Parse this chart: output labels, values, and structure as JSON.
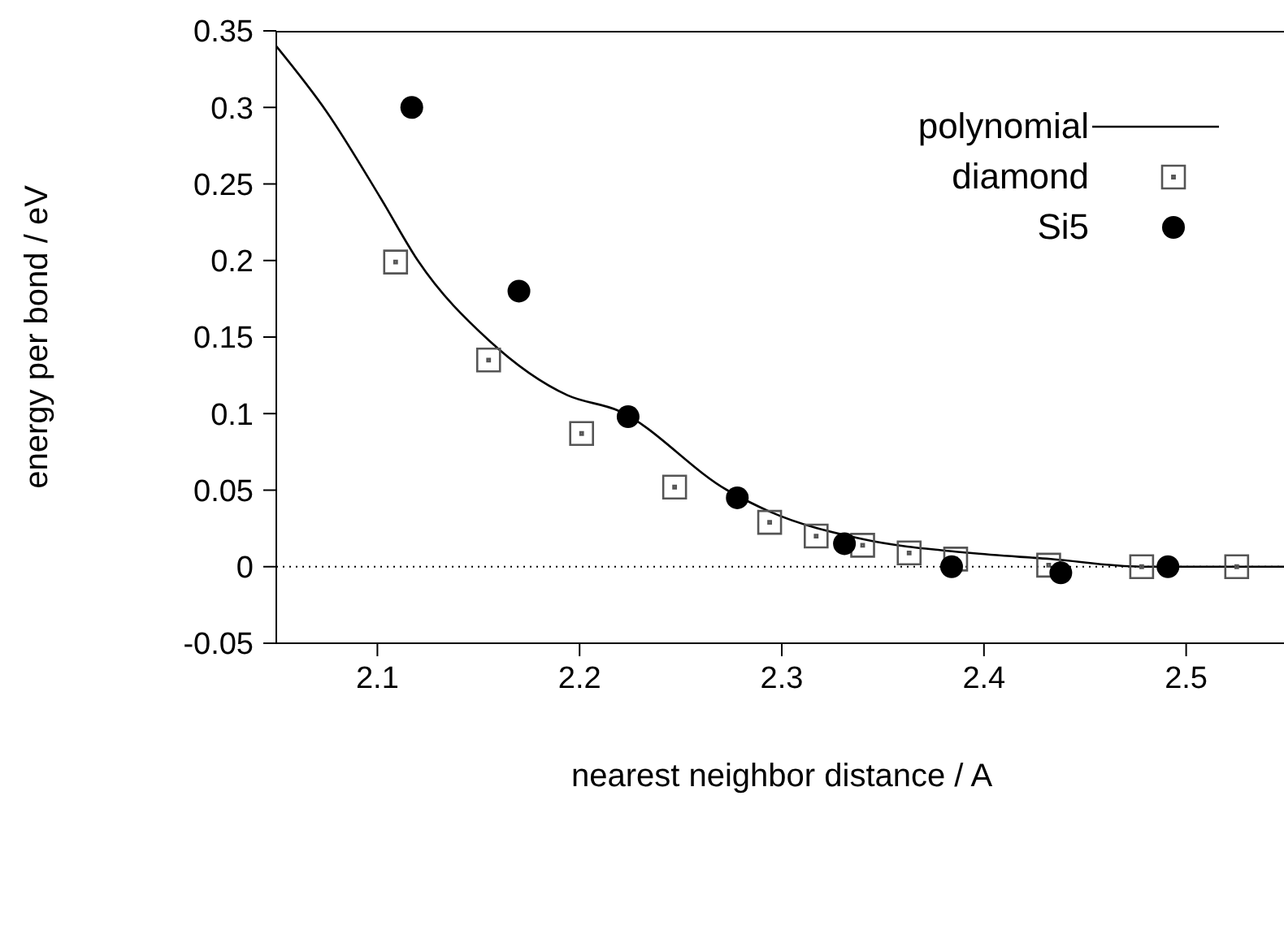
{
  "chart_data": {
    "type": "scatter",
    "xlabel": "nearest neighbor distance / A",
    "ylabel": "energy per bond / eV",
    "xlim": [
      2.05,
      2.55
    ],
    "xticks": [
      2.1,
      2.2,
      2.3,
      2.4,
      2.5
    ],
    "ylim": [
      -0.05,
      0.35
    ],
    "yticks": [
      -0.05,
      0,
      0.05,
      0.1,
      0.15,
      0.2,
      0.25,
      0.3,
      0.35
    ],
    "grid": false,
    "legend": "top right",
    "ref_lines": [
      {
        "axis": "y",
        "value": 0,
        "line_style": "dotted",
        "color": "#000000"
      }
    ],
    "series": [
      {
        "name": "polynomial",
        "type": "line",
        "color": "#000000",
        "line_style": "solid",
        "marker": "none",
        "x": [
          2.05,
          2.075,
          2.1015,
          2.12,
          2.155,
          2.194,
          2.219,
          2.273,
          2.294,
          2.34,
          2.393,
          2.433,
          2.478,
          2.55
        ],
        "values": [
          0.34,
          0.297,
          0.241,
          0.2,
          0.148,
          0.112,
          0.102,
          0.05,
          0.036,
          0.018,
          0.009,
          0.005,
          0.0,
          0.0
        ]
      },
      {
        "name": "diamond",
        "color": "#555555",
        "marker": "square",
        "x": [
          2.109,
          2.155,
          2.201,
          2.247,
          2.294,
          2.317,
          2.34,
          2.363,
          2.386,
          2.432,
          2.478,
          2.525
        ],
        "values": [
          0.199,
          0.135,
          0.087,
          0.052,
          0.029,
          0.02,
          0.014,
          0.009,
          0.005,
          0.001,
          0.0,
          0.0
        ]
      },
      {
        "name": "Si5",
        "color": "#000000",
        "marker": "circle",
        "x": [
          2.117,
          2.17,
          2.224,
          2.278,
          2.331,
          2.384,
          2.438,
          2.491
        ],
        "values": [
          0.3,
          0.18,
          0.098,
          0.045,
          0.015,
          0.0,
          -0.004,
          0.0
        ]
      }
    ]
  }
}
